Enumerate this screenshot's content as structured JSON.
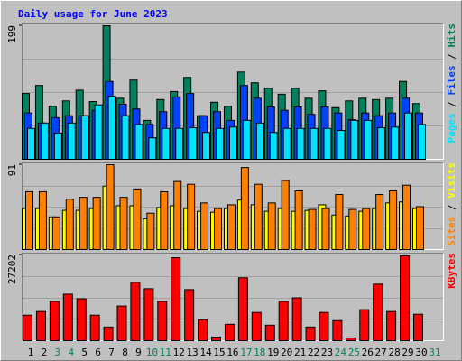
{
  "chart_data": {
    "type": "bar",
    "title": "Daily usage for June 2023",
    "separator": " / ",
    "categories": [
      "1",
      "2",
      "3",
      "4",
      "5",
      "6",
      "7",
      "8",
      "9",
      "10",
      "11",
      "12",
      "13",
      "14",
      "15",
      "16",
      "17",
      "18",
      "19",
      "20",
      "21",
      "22",
      "23",
      "24",
      "25",
      "26",
      "27",
      "28",
      "29",
      "30",
      "31"
    ],
    "category_colors": [
      "#000000",
      "#000000",
      "#00805c",
      "#00805c",
      "#000000",
      "#000000",
      "#000000",
      "#000000",
      "#000000",
      "#00805c",
      "#00805c",
      "#000000",
      "#000000",
      "#000000",
      "#000000",
      "#000000",
      "#00805c",
      "#00805c",
      "#000000",
      "#000000",
      "#000000",
      "#000000",
      "#000000",
      "#00805c",
      "#00805c",
      "#000000",
      "#000000",
      "#000000",
      "#000000",
      "#000000",
      "#00805c"
    ],
    "panels": [
      {
        "ylim": [
          0,
          199
        ],
        "yticks": [
          199
        ],
        "series": [
          {
            "name": "Hits",
            "color": "#00805c",
            "values": [
              98,
              110,
              79,
              87,
              103,
              86,
              199,
              91,
              118,
              58,
              89,
              101,
              122,
              65,
              85,
              79,
              130,
              114,
              106,
              97,
              106,
              91,
              102,
              77,
              87,
              91,
              89,
              91,
              116,
              83,
              0
            ]
          },
          {
            "name": "Files",
            "color": "#0040ff",
            "values": [
              69,
              54,
              62,
              65,
              65,
              73,
              116,
              82,
              75,
              52,
              71,
              93,
              98,
              65,
              71,
              58,
              110,
              91,
              78,
              73,
              78,
              67,
              78,
              69,
              59,
              69,
              65,
              69,
              91,
              69,
              0
            ]
          },
          {
            "name": "Pages",
            "color": "#00e0ff",
            "values": [
              46,
              54,
              39,
              54,
              65,
              81,
              94,
              65,
              52,
              32,
              46,
              46,
              47,
              40,
              46,
              48,
              58,
              54,
              40,
              46,
              46,
              46,
              46,
              43,
              58,
              58,
              47,
              48,
              69,
              52,
              0
            ]
          }
        ]
      },
      {
        "ylim": [
          0,
          91
        ],
        "yticks": [
          91
        ],
        "series": [
          {
            "name": "Visits",
            "color": "#ffff00",
            "values": [
              44,
              44,
              35,
              42,
              42,
              44,
              68,
              47,
              47,
              33,
              45,
              47,
              44,
              41,
              40,
              44,
              53,
              48,
              41,
              44,
              41,
              42,
              48,
              37,
              36,
              41,
              44,
              50,
              51,
              44,
              0
            ]
          },
          {
            "name": "Sites",
            "color": "#ff8000",
            "values": [
              62,
              62,
              35,
              54,
              56,
              56,
              91,
              56,
              65,
              39,
              62,
              73,
              70,
              50,
              44,
              48,
              88,
              70,
              50,
              74,
              63,
              43,
              44,
              59,
              43,
              44,
              59,
              63,
              69,
              46,
              0
            ]
          }
        ]
      },
      {
        "ylim": [
          0,
          27202
        ],
        "yticks": [
          27202
        ],
        "series": [
          {
            "name": "KBytes",
            "color": "#ff0000",
            "values": [
              8100,
              9260,
              12440,
              14760,
              13310,
              8100,
              4340,
              11000,
              18520,
              16500,
              12440,
              26330,
              16210,
              6660,
              1160,
              5210,
              19970,
              8970,
              4920,
              12440,
              13600,
              4340,
              8970,
              6370,
              870,
              9840,
              17940,
              9260,
              26910,
              8390,
              0
            ]
          }
        ]
      }
    ]
  }
}
